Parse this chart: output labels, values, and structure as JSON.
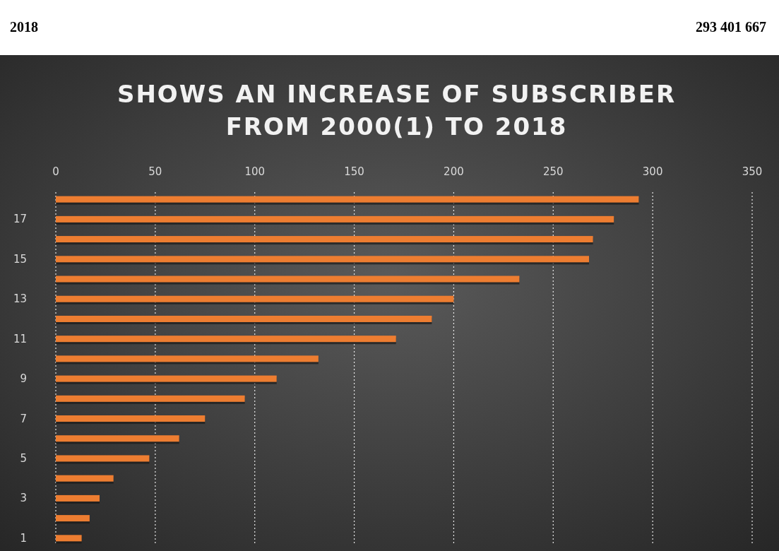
{
  "chart_data": {
    "type": "bar",
    "orientation": "horizontal",
    "title": "SHOWS AN INCREASE OF SUBSCRIBER\nFROM 2000(1) TO 2018",
    "annotations": [
      "2018",
      "293 401 667"
    ],
    "categories": [
      null,
      "17",
      null,
      "15",
      null,
      "13",
      null,
      "11",
      null,
      "9",
      null,
      "7",
      null,
      "5",
      null,
      "3",
      null,
      "1"
    ],
    "values": [
      293,
      280.5,
      270,
      268,
      233,
      200,
      189,
      171,
      132,
      111,
      95,
      75,
      62,
      47,
      29,
      22,
      17,
      13
    ],
    "color": "#ed7d31",
    "xlim": [
      0,
      350
    ],
    "xticks": [
      0,
      50,
      100,
      150,
      200,
      250,
      300,
      350
    ],
    "grid": "x"
  }
}
